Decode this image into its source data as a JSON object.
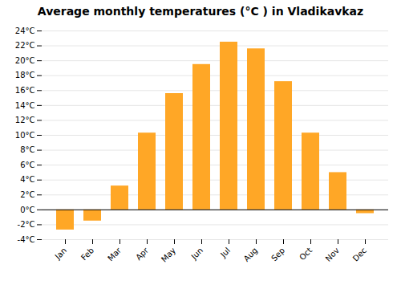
{
  "chart_data": {
    "type": "bar",
    "title": "Average monthly temperatures (°C ) in Vladikavkaz",
    "categories": [
      "Jan",
      "Feb",
      "Mar",
      "Apr",
      "May",
      "Jun",
      "Jul",
      "Aug",
      "Sep",
      "Oct",
      "Nov",
      "Dec"
    ],
    "values": [
      -2.7,
      -1.5,
      3.2,
      10.3,
      15.6,
      19.5,
      22.5,
      21.6,
      17.2,
      10.3,
      5.0,
      -0.5
    ],
    "color": "#FFA726",
    "ylim": [
      -4,
      24
    ],
    "yticks": [
      {
        "value": -4,
        "label": "-4°C"
      },
      {
        "value": -2,
        "label": "-2°C"
      },
      {
        "value": 0,
        "label": "0°C"
      },
      {
        "value": 2,
        "label": "2°C"
      },
      {
        "value": 4,
        "label": "4°C"
      },
      {
        "value": 6,
        "label": "6°C"
      },
      {
        "value": 8,
        "label": "8°C"
      },
      {
        "value": 10,
        "label": "10°C"
      },
      {
        "value": 12,
        "label": "12°C"
      },
      {
        "value": 14,
        "label": "14°C"
      },
      {
        "value": 16,
        "label": "16°C"
      },
      {
        "value": 18,
        "label": "18°C"
      },
      {
        "value": 20,
        "label": "20°C"
      },
      {
        "value": 22,
        "label": "22°C"
      },
      {
        "value": 24,
        "label": "24°C"
      }
    ],
    "grid": true
  }
}
